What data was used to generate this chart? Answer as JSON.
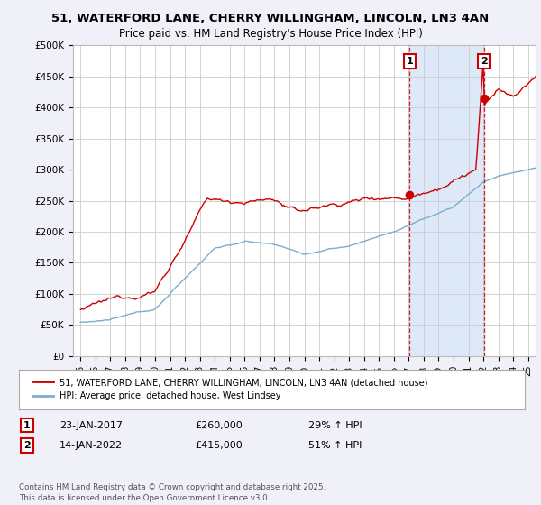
{
  "title_line1": "51, WATERFORD LANE, CHERRY WILLINGHAM, LINCOLN, LN3 4AN",
  "title_line2": "Price paid vs. HM Land Registry's House Price Index (HPI)",
  "ylim": [
    0,
    500000
  ],
  "yticks": [
    0,
    50000,
    100000,
    150000,
    200000,
    250000,
    300000,
    350000,
    400000,
    450000,
    500000
  ],
  "ytick_labels": [
    "£0",
    "£50K",
    "£100K",
    "£150K",
    "£200K",
    "£250K",
    "£300K",
    "£350K",
    "£400K",
    "£450K",
    "£500K"
  ],
  "background_color": "#f0f0f8",
  "plot_background": "#ffffff",
  "shaded_region_color": "#dde8f8",
  "grid_color": "#cccccc",
  "red_line_color": "#cc0000",
  "blue_line_color": "#7aadce",
  "vline_color": "#cc0000",
  "marker1_price": 260000,
  "marker1_date": "23-JAN-2017",
  "marker1_pct": "29% ↑ HPI",
  "marker2_price": 415000,
  "marker2_date": "14-JAN-2022",
  "marker2_pct": "51% ↑ HPI",
  "marker1_year": 2017.06,
  "marker2_year": 2022.04,
  "legend_red": "51, WATERFORD LANE, CHERRY WILLINGHAM, LINCOLN, LN3 4AN (detached house)",
  "legend_blue": "HPI: Average price, detached house, West Lindsey",
  "footnote": "Contains HM Land Registry data © Crown copyright and database right 2025.\nThis data is licensed under the Open Government Licence v3.0.",
  "xlim_start": 1994.5,
  "xlim_end": 2025.5
}
